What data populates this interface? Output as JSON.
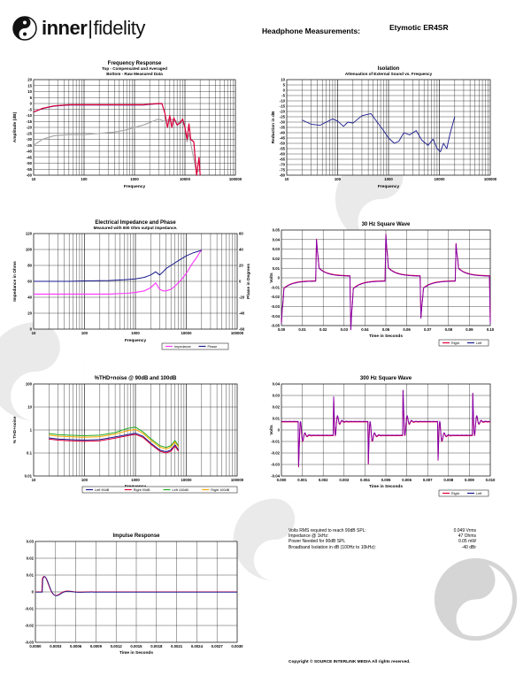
{
  "header": {
    "logo_bold": "inner",
    "logo_light": "fidelity",
    "title_label": "Headphone Measurements:",
    "model": "Etymotic ER4SR"
  },
  "colors": {
    "red": "#e0003a",
    "gray": "#a8a8a8",
    "navy": "#1a1a90",
    "magenta": "#ff33ff",
    "green": "#22aa22",
    "orange": "#ffaa00",
    "purple": "#7f00b0"
  },
  "charts": {
    "fr": {
      "title": "Frequency Response",
      "subtitle1": "Top - Compensated and Averaged",
      "subtitle2": "Bottom - Raw Measured Data",
      "xlabel": "Frequency",
      "ylabel": "Amplitude (dB)",
      "xticks": [
        "10",
        "100",
        "1000",
        "10000",
        "100000"
      ],
      "yticks": [
        "20",
        "15",
        "10",
        "5",
        "0",
        "-5",
        "-10",
        "-15",
        "-20",
        "-25",
        "-30",
        "-35",
        "-40",
        "-45",
        "-50",
        "-55",
        "-60"
      ]
    },
    "iso": {
      "title": "Isolation",
      "subtitle1": "Attenuation of External Sound vs. Frequency",
      "xlabel": "Frequency",
      "ylabel": "Reduction in dB",
      "xticks": [
        "10",
        "100",
        "1000",
        "10000",
        "100000"
      ],
      "yticks": [
        "10",
        "5",
        "0",
        "-5",
        "-10",
        "-15",
        "-20",
        "-25",
        "-30",
        "-35",
        "-40",
        "-45",
        "-50",
        "-55",
        "-60",
        "-65",
        "-70",
        "-75",
        "-80"
      ]
    },
    "imp": {
      "title": "Electrical Impedance and Phase",
      "subtitle1": "Measured with 600 Ohm output impedance.",
      "xlabel": "Frequency",
      "ylabel": "Impedance in Ohms",
      "ylabel2": "Phase in Degrees",
      "xticks": [
        "10",
        "100",
        "1000",
        "10000",
        "100000"
      ],
      "yticks": [
        "120",
        "100",
        "80",
        "60",
        "40",
        "20",
        "0"
      ],
      "yticks2": [
        "60",
        "40",
        "20",
        "0",
        "-20",
        "-40",
        "-60"
      ],
      "legend": [
        "Impedance",
        "Phase"
      ]
    },
    "sq30": {
      "title": "30 Hz Square Wave",
      "xlabel": "Time in Seconds",
      "ylabel": "Volts",
      "xticks": [
        "0.00",
        "0.01",
        "0.02",
        "0.03",
        "0.04",
        "0.05",
        "0.06",
        "0.07",
        "0.08",
        "0.09",
        "0.10"
      ],
      "yticks": [
        "0.05",
        "0.04",
        "0.03",
        "0.02",
        "0.01",
        "0",
        "-0.01",
        "-0.02",
        "-0.03",
        "-0.04",
        "-0.05"
      ],
      "legend": [
        "Right",
        "Left"
      ]
    },
    "thd": {
      "title": "%THD+noise @ 90dB and 100dB",
      "xlabel": "Frequency",
      "ylabel": "% THD+noise",
      "xticks": [
        "10",
        "100",
        "1000",
        "10000",
        "100000"
      ],
      "yticks": [
        "100",
        "10",
        "1",
        "0.1",
        "0.01"
      ],
      "legend": [
        "Left 90dB",
        "Right 90dB",
        "Left 100dB",
        "Right 100dB"
      ]
    },
    "sq300": {
      "title": "300 Hz Square Wave",
      "xlabel": "Time in Seconds",
      "ylabel": "Volts",
      "xticks": [
        "0.000",
        "0.001",
        "0.002",
        "0.003",
        "0.004",
        "0.005",
        "0.006",
        "0.007",
        "0.008",
        "0.009",
        "0.010"
      ],
      "yticks": [
        "0.04",
        "0.03",
        "0.02",
        "0.01",
        "0",
        "-0.01",
        "-0.02",
        "-0.03",
        "-0.04"
      ],
      "legend": [
        "Right",
        "Left"
      ]
    },
    "imr": {
      "title": "Impulse Response",
      "xlabel": "Time in Seconds",
      "xticks": [
        "0.0000",
        "0.0003",
        "0.0006",
        "0.0009",
        "0.0012",
        "0.0015",
        "0.0018",
        "0.0021",
        "0.0024",
        "0.0027",
        "0.0030"
      ],
      "yticks": [
        "0.03",
        "0.02",
        "0.01",
        "0",
        "-0.01",
        "-0.02",
        "-0.03"
      ]
    }
  },
  "stats": [
    {
      "label": "Volts RMS required to reach 90dB SPL:",
      "value": "0.049 Vrms"
    },
    {
      "label": "Impedance @ 1kHz:",
      "value": "47 Ohms"
    },
    {
      "label": "Power Needed for 90dB SPL",
      "value": "0.05 mW"
    },
    {
      "label": "Broadband Isolation in dB (100Hz to 10kHz):",
      "value": "-40 dBr"
    }
  ],
  "copyright": "Copyright © SOURCE INTERLINK MEDIA All rights reserved."
}
